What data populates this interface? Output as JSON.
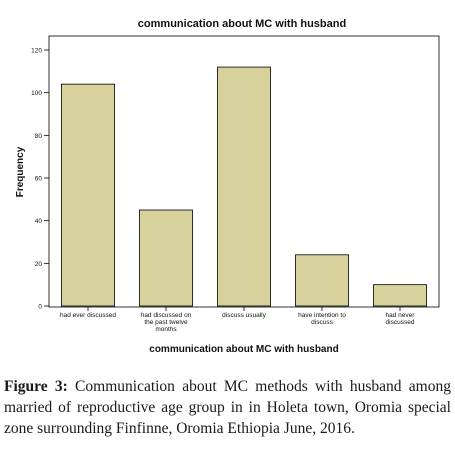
{
  "chart_data": {
    "type": "bar",
    "title": "communication about MC with husband",
    "xlabel": "communication about MC with husband",
    "ylabel": "Frequency",
    "categories": [
      [
        "had ever discussed"
      ],
      [
        "had discussed on",
        "the past twelve",
        "months"
      ],
      [
        "discuss usually"
      ],
      [
        "have intention to",
        "discuss"
      ],
      [
        "had never",
        "discussed"
      ]
    ],
    "values": [
      104,
      45,
      112,
      24,
      10
    ],
    "ylim": [
      0,
      120
    ],
    "yticks": [
      "0",
      "20",
      "40",
      "60",
      "80",
      "100",
      "120"
    ],
    "bar_color": "#d7d19c",
    "grid": false
  },
  "caption": {
    "label": "Figure 3:",
    "text": " Communication about MC methods with husband among married of reproductive age group in in Holeta town, Oromia special zone surrounding Finfinne, Oromia Ethiopia June, 2016."
  }
}
